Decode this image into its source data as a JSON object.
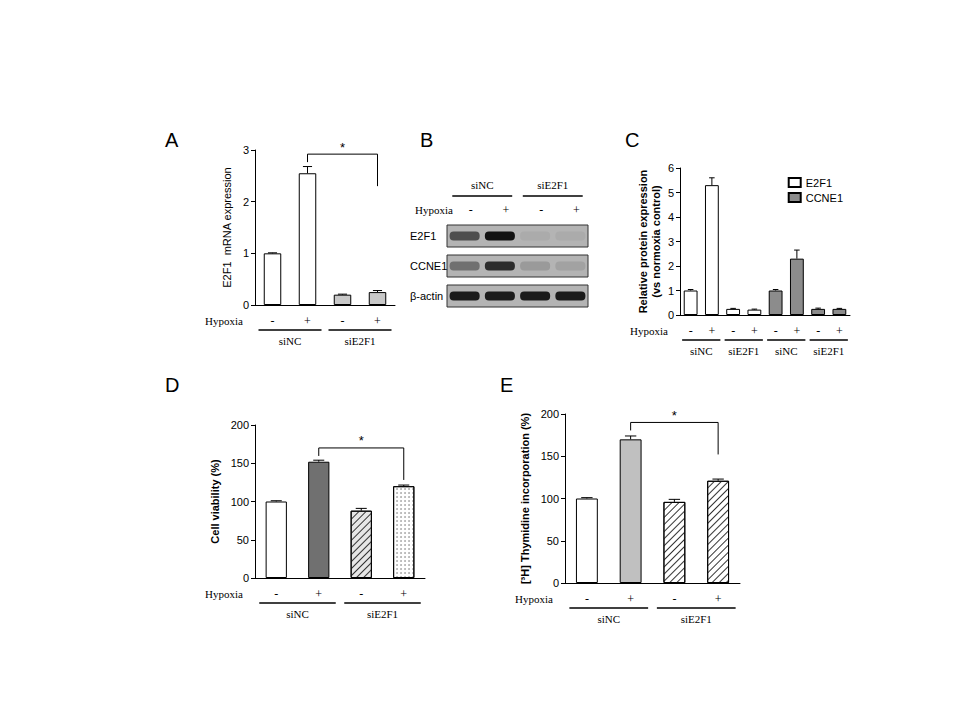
{
  "chart_data": [
    {
      "type": "bar",
      "panel": "A",
      "ylabel": "E2F1  mRNA expression",
      "xlabel": "Hypoxia",
      "categories": [
        "-",
        "+",
        "-",
        "+"
      ],
      "groups": [
        "siNC",
        "siNC",
        "siE2F1",
        "siE2F1"
      ],
      "ylim": [
        0,
        3
      ],
      "yticks": [
        0,
        1,
        2,
        3
      ],
      "grid": false,
      "series": [
        {
          "values": [
            1.0,
            2.55,
            0.2,
            0.25
          ],
          "errors": [
            0.01,
            0.13,
            0.01,
            0.03
          ],
          "colors": [
            "#ffffff",
            "#ffffff",
            "#c8c8c8",
            "#c8c8c8"
          ],
          "marker": [
            "solid",
            "solid",
            "solid",
            "solid"
          ]
        }
      ],
      "significance": [
        {
          "pair": [
            1,
            3
          ],
          "label": "*"
        }
      ]
    },
    {
      "type": "bar",
      "panel": "C",
      "ylabel": [
        "Relative protein expression",
        "(vs normoxia control)"
      ],
      "xlabel": "Hypoxia",
      "categories": [
        "-",
        "+",
        "-",
        "+",
        "-",
        "+",
        "-",
        "+"
      ],
      "groups": [
        "siNC",
        "siNC",
        "siE2F1",
        "siE2F1",
        "siNC",
        "siNC",
        "siE2F1",
        "siE2F1"
      ],
      "ylim": [
        0,
        6
      ],
      "yticks": [
        0,
        1,
        2,
        3,
        4,
        5,
        6
      ],
      "grid": false,
      "legend": "top-right",
      "series": [
        {
          "name": "E2F1",
          "color": "#ffffff",
          "values": [
            1.0,
            5.3,
            0.25,
            0.22,
            null,
            null,
            null,
            null
          ],
          "errors": [
            0.04,
            0.3,
            0.02,
            0.02,
            null,
            null,
            null,
            null
          ]
        },
        {
          "name": "CCNE1",
          "color": "#8c8c8c",
          "values": [
            null,
            null,
            null,
            null,
            1.0,
            2.3,
            0.25,
            0.25
          ],
          "errors": [
            null,
            null,
            null,
            null,
            0.04,
            0.35,
            0.03,
            0.02
          ]
        }
      ]
    },
    {
      "type": "bar",
      "panel": "D",
      "ylabel": "Cell viability (%)",
      "xlabel": "Hypoxia",
      "categories": [
        "-",
        "+",
        "-",
        "+"
      ],
      "groups": [
        "siNC",
        "siNC",
        "siE2F1",
        "siE2F1"
      ],
      "ylim": [
        0,
        200
      ],
      "yticks": [
        0,
        50,
        100,
        150,
        200
      ],
      "grid": false,
      "series": [
        {
          "values": [
            100,
            152,
            88,
            120
          ],
          "errors": [
            1,
            2,
            3,
            1.5
          ],
          "colors": [
            "#ffffff",
            "#707070",
            "#e6e6e6",
            "#ffffff"
          ],
          "marker": [
            "solid",
            "solid",
            "hatch",
            "dots"
          ]
        }
      ],
      "significance": [
        {
          "pair": [
            1,
            3
          ],
          "label": "*"
        }
      ]
    },
    {
      "type": "bar",
      "panel": "E",
      "ylabel": "[³H] Thymidine incorporation (%)",
      "xlabel": "Hypoxia",
      "categories": [
        "-",
        "+",
        "-",
        "+"
      ],
      "groups": [
        "siNC",
        "siNC",
        "siE2F1",
        "siE2F1"
      ],
      "ylim": [
        0,
        200
      ],
      "yticks": [
        0,
        50,
        100,
        150,
        200
      ],
      "grid": false,
      "series": [
        {
          "values": [
            100,
            170,
            96,
            121
          ],
          "errors": [
            1,
            4,
            3,
            2
          ],
          "colors": [
            "#ffffff",
            "#c0c0c0",
            "#ffffff",
            "#ffffff"
          ],
          "marker": [
            "solid",
            "solid",
            "hatch",
            "hatch"
          ]
        }
      ],
      "significance": [
        {
          "pair": [
            1,
            3
          ],
          "label": "*"
        }
      ]
    }
  ],
  "blot": {
    "panel": "B",
    "xlabel": "Hypoxia",
    "hypoxia": [
      "-",
      "+",
      "-",
      "+"
    ],
    "groups": [
      "siNC",
      "siNC",
      "siE2F1",
      "siE2F1"
    ],
    "rows": [
      {
        "name": "E2F1",
        "band_intensity": [
          0.6,
          0.95,
          0.05,
          0.05
        ]
      },
      {
        "name": "CCNE1",
        "band_intensity": [
          0.4,
          0.8,
          0.15,
          0.1
        ]
      },
      {
        "name": "β-actin",
        "band_intensity": [
          0.9,
          0.9,
          0.9,
          0.9
        ]
      }
    ]
  }
}
